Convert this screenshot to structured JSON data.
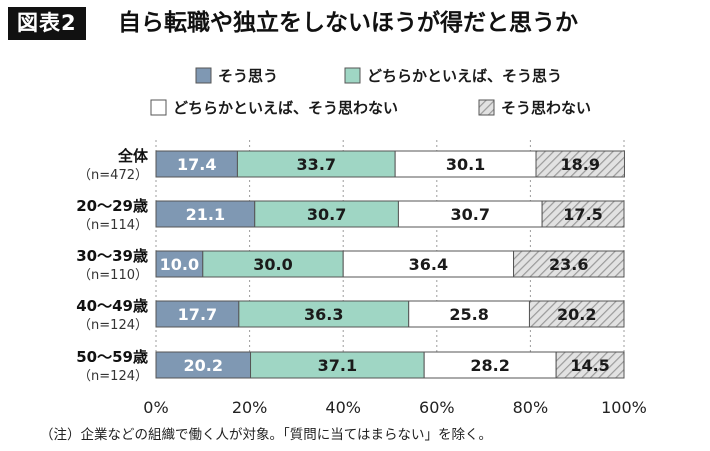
{
  "header": {
    "figure_label": "図表2",
    "title": "自ら転職や独立をしないほうが得だと思うか"
  },
  "footnote": "（注）企業などの組織で働く人が対象。「質問に当てはまらない」を除く。",
  "colors": {
    "series": [
      "#7f98b3",
      "#9fd6c4",
      "#ffffff",
      "#d9d9d9"
    ],
    "value_text": [
      "#ffffff",
      "#1a1a1a",
      "#1a1a1a",
      "#1a1a1a"
    ],
    "outline": "#555555"
  },
  "chart_data": {
    "type": "bar",
    "orientation": "horizontal",
    "stacked": true,
    "categories": [
      {
        "label": "全体",
        "n": "（n=472）"
      },
      {
        "label": "20〜29歳",
        "n": "（n=114）"
      },
      {
        "label": "30〜39歳",
        "n": "（n=110）"
      },
      {
        "label": "40〜49歳",
        "n": "（n=124）"
      },
      {
        "label": "50〜59歳",
        "n": "（n=124）"
      }
    ],
    "series": [
      {
        "name": "そう思う",
        "values": [
          17.4,
          21.1,
          10.0,
          17.7,
          20.2
        ],
        "labels": [
          "17.4",
          "21.1",
          "10.0",
          "17.7",
          "20.2"
        ]
      },
      {
        "name": "どちらかといえば、そう思う",
        "values": [
          33.7,
          30.7,
          30.0,
          36.3,
          37.1
        ],
        "labels": [
          "33.7",
          "30.7",
          "30.0",
          "36.3",
          "37.1"
        ]
      },
      {
        "name": "どちらかといえば、そう思わない",
        "values": [
          30.1,
          30.7,
          36.4,
          25.8,
          28.2
        ],
        "labels": [
          "30.1",
          "30.7",
          "36.4",
          "25.8",
          "28.2"
        ]
      },
      {
        "name": "そう思わない",
        "values": [
          18.9,
          17.5,
          23.6,
          20.2,
          14.5
        ],
        "labels": [
          "18.9",
          "17.5",
          "23.6",
          "20.2",
          "14.5"
        ],
        "pattern": "hatched"
      }
    ],
    "xlim": [
      0,
      100
    ],
    "xticks": [
      0,
      20,
      40,
      60,
      80,
      100
    ],
    "xtick_labels": [
      "0%",
      "20%",
      "40%",
      "60%",
      "80%",
      "100%"
    ],
    "grid": "vertical dotted",
    "legend_position": "top"
  }
}
